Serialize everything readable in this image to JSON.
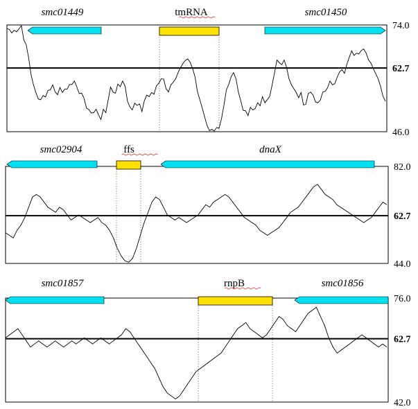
{
  "colors": {
    "gene": "#00e0f0",
    "rna": "#ffe000",
    "trace": "#000000"
  },
  "panels": [
    {
      "ymin": 46.0,
      "ymax": 74.0,
      "mid": 62.7,
      "ymin_label": "46.0",
      "ymax_label": "74.0",
      "mid_label": "62.7",
      "features": [
        {
          "label": "smc01449",
          "kind": "gene",
          "dir": "left"
        },
        {
          "label": "tmRNA",
          "kind": "rna",
          "dir": "none"
        },
        {
          "label": "smc01450",
          "kind": "gene",
          "dir": "right"
        }
      ],
      "trace": [
        73.1,
        72.8,
        71.9,
        72.6,
        72.2,
        73.0,
        73.8,
        70.1,
        68.8,
        65.4,
        61.0,
        58.3,
        56.3,
        54.6,
        54.4,
        55.5,
        55.1,
        56.8,
        57.0,
        58.3,
        56.4,
        55.7,
        57.6,
        56.3,
        57.2,
        57.2,
        58.4,
        58.4,
        59.3,
        57.7,
        56.0,
        56.1,
        54.7,
        52.2,
        51.8,
        50.9,
        51.0,
        51.9,
        50.4,
        49.2,
        51.9,
        51.0,
        54.4,
        57.7,
        56.4,
        56.1,
        58.5,
        57.8,
        59.3,
        58.0,
        54.0,
        52.5,
        51.7,
        53.5,
        52.9,
        53.3,
        51.3,
        54.1,
        55.6,
        55.2,
        56.3,
        55.8,
        58.0,
        58.7,
        59.9,
        59.8,
        57.3,
        56.4,
        58.3,
        59.0,
        59.9,
        61.5,
        62.8,
        63.9,
        64.7,
        65.1,
        64.2,
        62.6,
        60.4,
        56.6,
        54.4,
        52.2,
        49.9,
        47.7,
        46.3,
        46.6,
        46.2,
        47.1,
        46.9,
        49.4,
        52.9,
        56.9,
        58.4,
        60.4,
        61.5,
        59.9,
        56.4,
        54.1,
        51.6,
        51.5,
        50.2,
        52.4,
        51.7,
        52.1,
        53.6,
        52.8,
        55.2,
        53.6,
        54.4,
        55.3,
        58.2,
        61.4,
        64.8,
        64.1,
        63.6,
        64.8,
        62.9,
        59.9,
        58.3,
        57.3,
        56.3,
        54.9,
        56.3,
        53.0,
        53.2,
        56.0,
        56.4,
        55.6,
        53.8,
        53.6,
        54.3,
        56.4,
        56.6,
        57.5,
        59.3,
        58.3,
        58.6,
        60.3,
        61.7,
        62.3,
        61.3,
        63.7,
        65.5,
        67.2,
        66.0,
        66.6,
        66.4,
        67.3,
        67.7,
        66.6,
        64.8,
        64.0,
        62.5,
        61.2,
        59.8,
        57.9,
        55.3,
        54.0
      ]
    },
    {
      "ymin": 44.0,
      "ymax": 82.0,
      "mid": 62.7,
      "ymin_label": "44.0",
      "ymax_label": "82.0",
      "mid_label": "62.7",
      "features": [
        {
          "label": "smc02904",
          "kind": "gene",
          "dir": "left"
        },
        {
          "label": "ffs",
          "kind": "rna",
          "dir": "none"
        },
        {
          "label": "dnaX",
          "kind": "gene",
          "dir": "left"
        }
      ],
      "trace": [
        56.0,
        55.0,
        54.0,
        57.0,
        59.0,
        62.0,
        66.0,
        70.0,
        71.0,
        70.0,
        68.0,
        66.0,
        65.0,
        64.0,
        66.0,
        65.0,
        63.0,
        61.0,
        62.0,
        63.0,
        62.0,
        61.0,
        60.0,
        61.0,
        62.0,
        60.0,
        59.0,
        57.0,
        54.0,
        50.0,
        47.0,
        45.0,
        44.5,
        46.0,
        50.0,
        55.0,
        60.0,
        64.0,
        68.0,
        70.0,
        69.0,
        66.0,
        63.0,
        62.0,
        61.0,
        62.0,
        61.0,
        60.0,
        61.0,
        62.0,
        63.0,
        65.0,
        67.0,
        66.0,
        68.0,
        69.0,
        70.0,
        71.0,
        70.0,
        68.0,
        66.0,
        64.0,
        62.0,
        61.0,
        60.0,
        59.0,
        57.0,
        56.0,
        55.0,
        56.0,
        57.0,
        58.0,
        60.0,
        62.0,
        64.0,
        65.0,
        66.0,
        68.0,
        70.0,
        72.0,
        74.0,
        75.0,
        73.0,
        71.0,
        70.0,
        69.0,
        67.0,
        66.0,
        65.0,
        64.0,
        63.0,
        62.0,
        61.0,
        60.0,
        61.0,
        62.0,
        64.0,
        66.0,
        68.0,
        67.0
      ]
    },
    {
      "ymin": 42.0,
      "ymax": 76.0,
      "mid": 62.7,
      "ymin_label": "42.0",
      "ymax_label": "76.0",
      "mid_label": "62.7",
      "features": [
        {
          "label": "smc01857",
          "kind": "gene",
          "dir": "left"
        },
        {
          "label": "rnpB",
          "kind": "rna",
          "dir": "none"
        },
        {
          "label": "smc01856",
          "kind": "gene",
          "dir": "left"
        }
      ],
      "trace": [
        63.0,
        64.0,
        65.0,
        66.0,
        64.0,
        62.0,
        60.0,
        61.0,
        62.0,
        61.0,
        60.0,
        61.0,
        62.0,
        61.0,
        60.0,
        61.0,
        62.0,
        61.0,
        62.0,
        63.0,
        62.0,
        61.0,
        62.0,
        63.0,
        62.0,
        61.0,
        62.0,
        63.0,
        64.0,
        66.0,
        65.0,
        63.0,
        61.0,
        59.0,
        57.0,
        55.0,
        53.0,
        50.0,
        47.0,
        45.0,
        44.0,
        43.0,
        44.0,
        46.0,
        48.0,
        50.0,
        52.0,
        53.0,
        54.0,
        55.0,
        56.0,
        57.0,
        58.0,
        60.0,
        62.0,
        64.0,
        66.0,
        67.0,
        68.0,
        66.0,
        65.0,
        64.0,
        63.0,
        64.0,
        66.0,
        68.0,
        70.0,
        69.0,
        67.0,
        66.0,
        65.0,
        67.0,
        69.0,
        71.0,
        72.0,
        73.0,
        70.0,
        67.0,
        63.0,
        60.0,
        58.0,
        59.0,
        60.0,
        61.0,
        62.0,
        63.0,
        64.0,
        63.0,
        62.0,
        61.0,
        60.0,
        61.0,
        60.0
      ]
    }
  ]
}
